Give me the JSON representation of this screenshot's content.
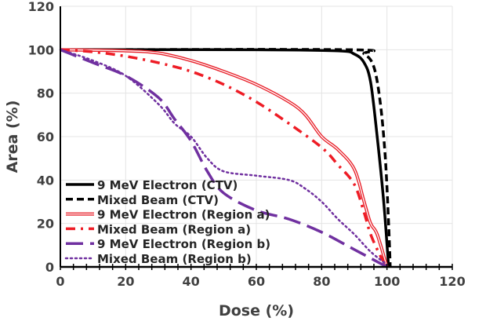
{
  "chart_data": {
    "type": "line",
    "title": "",
    "xlabel": "Dose (%)",
    "ylabel": "Area (%)",
    "xlim": [
      0,
      120
    ],
    "ylim": [
      0,
      120
    ],
    "xticks": [
      0,
      20,
      40,
      60,
      80,
      100,
      120
    ],
    "yticks": [
      0,
      20,
      40,
      60,
      80,
      100,
      120
    ],
    "grid": true,
    "legend_position": "bottom-left",
    "series": [
      {
        "name": "9 MeV Electron (CTV)",
        "color": "#000000",
        "style": "solid",
        "x": [
          0,
          60,
          85,
          90,
          93,
          95,
          97,
          99,
          100.5
        ],
        "y": [
          100,
          100,
          99.5,
          98,
          94,
          85,
          60,
          30,
          0
        ]
      },
      {
        "name": "Mixed Beam (CTV)",
        "color": "#000000",
        "style": "dashed",
        "x": [
          0,
          88,
          93,
          96,
          98,
          99.5,
          100.5,
          101
        ],
        "y": [
          100,
          100,
          98,
          92,
          75,
          50,
          20,
          0
        ]
      },
      {
        "name": "9 MeV Electron (Region a)",
        "color": "#e8202a",
        "style": "double",
        "x": [
          0,
          20,
          30,
          40,
          50,
          60,
          70,
          75,
          80,
          85,
          90,
          93,
          95,
          97,
          100
        ],
        "y": [
          100,
          99.5,
          98.5,
          95,
          90,
          84,
          76,
          70,
          60,
          54,
          45,
          30,
          20,
          15,
          0
        ]
      },
      {
        "name": "Mixed Beam (Region a)",
        "color": "#ee1c25",
        "style": "dashdot",
        "x": [
          0,
          10,
          20,
          30,
          40,
          50,
          60,
          70,
          80,
          85,
          90,
          93,
          95,
          98,
          100
        ],
        "y": [
          100,
          99,
          97,
          94,
          90,
          84,
          76,
          66,
          55,
          47,
          38,
          25,
          15,
          5,
          0
        ]
      },
      {
        "name": "9 MeV Electron (Region b)",
        "color": "#7030a0",
        "style": "longdash",
        "x": [
          0,
          10,
          20,
          30,
          35,
          40,
          45,
          50,
          60,
          70,
          80,
          90,
          100
        ],
        "y": [
          100,
          94,
          88,
          78,
          68,
          58,
          44,
          34,
          26,
          22,
          16,
          8,
          0
        ]
      },
      {
        "name": "Mixed Beam (Region b)",
        "color": "#7030a0",
        "style": "dotted",
        "x": [
          0,
          10,
          20,
          30,
          35,
          40,
          45,
          50,
          60,
          70,
          75,
          80,
          85,
          90,
          95,
          100
        ],
        "y": [
          100,
          95,
          88,
          75,
          66,
          60,
          50,
          44,
          42,
          40,
          36,
          30,
          22,
          15,
          7,
          1
        ]
      }
    ]
  }
}
